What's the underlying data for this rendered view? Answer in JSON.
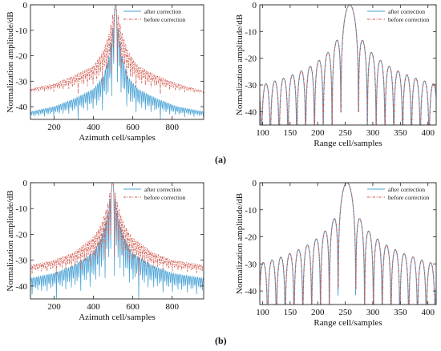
{
  "labels": {
    "a": "(a)",
    "b": "(b)"
  },
  "colors": {
    "after": "#4aa3d6",
    "before": "#d2584d",
    "axis": "#222222"
  },
  "chart_data": [
    {
      "type": "line",
      "panel": "a",
      "xlabel": "Azimuth cell/samples",
      "ylabel": "Normalization amplitude/dB",
      "xlim": [
        80,
        960
      ],
      "ylim": [
        -45,
        0
      ],
      "xticks": [
        200,
        400,
        600,
        800
      ],
      "yticks": [
        0,
        -10,
        -20,
        -30,
        -40
      ],
      "center": 512,
      "series": [
        {
          "name": "after correction",
          "style": "solid",
          "envelope_x": [
            80,
            200,
            300,
            400,
            450,
            480,
            500,
            512,
            524,
            545,
            575,
            625,
            725,
            825,
            960
          ],
          "envelope_y": [
            -42,
            -40,
            -37,
            -33,
            -28,
            -20,
            -8,
            0,
            -8,
            -20,
            -28,
            -33,
            -37,
            -40,
            -42
          ],
          "floor": -45
        },
        {
          "name": "before correction",
          "style": "dashdot",
          "envelope_x": [
            80,
            200,
            300,
            400,
            450,
            480,
            500,
            512,
            524,
            545,
            575,
            625,
            725,
            825,
            960
          ],
          "envelope_y": [
            -33,
            -31,
            -28,
            -24,
            -18,
            -11,
            -3,
            0,
            -3,
            -11,
            -18,
            -24,
            -28,
            -31,
            -34
          ],
          "floor": -35
        }
      ]
    },
    {
      "type": "line",
      "panel": "a",
      "xlabel": "Range cell/samples",
      "ylabel": "Normalization amplitude/dB",
      "xlim": [
        95,
        415
      ],
      "ylim": [
        -45,
        0
      ],
      "xticks": [
        100,
        150,
        200,
        250,
        300,
        350,
        400
      ],
      "yticks": [
        0,
        -10,
        -20,
        -30,
        -40
      ],
      "center": 258,
      "lobe_spacing": 16,
      "series": [
        {
          "name": "after correction",
          "style": "solid"
        },
        {
          "name": "before correction",
          "style": "dashdot"
        }
      ]
    },
    {
      "type": "line",
      "panel": "b",
      "xlabel": "Azimuth cell/samples",
      "ylabel": "Normalization amplitude/dB",
      "xlim": [
        80,
        960
      ],
      "ylim": [
        -45,
        0
      ],
      "xticks": [
        200,
        400,
        600,
        800
      ],
      "yticks": [
        0,
        -10,
        -20,
        -30,
        -40
      ],
      "center": 497,
      "series": [
        {
          "name": "after correction",
          "style": "solid",
          "envelope_x": [
            80,
            200,
            300,
            400,
            440,
            470,
            487,
            497,
            507,
            525,
            555,
            595,
            700,
            800,
            960
          ],
          "envelope_y": [
            -37,
            -35,
            -32,
            -27,
            -21,
            -13,
            -4,
            0,
            -4,
            -13,
            -21,
            -27,
            -32,
            -35,
            -37
          ],
          "floor": -45
        },
        {
          "name": "before correction",
          "style": "dashdot",
          "envelope_x": [
            80,
            200,
            300,
            400,
            440,
            470,
            487,
            497,
            507,
            525,
            555,
            595,
            700,
            800,
            960
          ],
          "envelope_y": [
            -32,
            -30,
            -27,
            -21,
            -16,
            -9,
            -2,
            0,
            -2,
            -9,
            -16,
            -21,
            -27,
            -30,
            -32
          ],
          "floor": -36
        }
      ]
    },
    {
      "type": "line",
      "panel": "b",
      "xlabel": "Range cell/samples",
      "ylabel": "Normalization amplitude/dB",
      "xlim": [
        95,
        415
      ],
      "ylim": [
        -45,
        0
      ],
      "xticks": [
        100,
        150,
        200,
        250,
        300,
        350,
        400
      ],
      "yticks": [
        0,
        -10,
        -20,
        -30,
        -40
      ],
      "center": 253,
      "lobe_spacing": 16,
      "series": [
        {
          "name": "after correction",
          "style": "solid"
        },
        {
          "name": "before correction",
          "style": "dashdot"
        }
      ]
    }
  ]
}
